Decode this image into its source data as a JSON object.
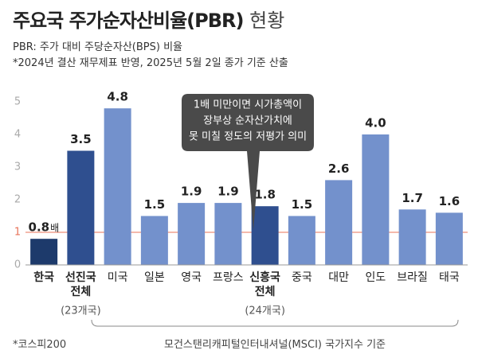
{
  "chart_data": {
    "type": "bar",
    "title": "주요국 주가순자산비율(PBR)",
    "title_suffix": "현황",
    "subtitle": [
      "PBR: 주가 대비 주당순자산(BPS) 비율",
      "*2024년 결산 재무제표 반영, 2025년 5월 2일 종가 기준 산출"
    ],
    "categories": [
      "한국",
      "선진국 전체",
      "미국",
      "일본",
      "영국",
      "프랑스",
      "신흥국 전체",
      "중국",
      "대만",
      "인도",
      "브라질",
      "태국"
    ],
    "values": [
      0.8,
      3.5,
      4.8,
      1.5,
      1.9,
      1.9,
      1.8,
      1.5,
      2.6,
      4.0,
      1.7,
      1.6
    ],
    "value_labels": [
      "0.8",
      "3.5",
      "4.8",
      "1.5",
      "1.9",
      "1.9",
      "1.8",
      "1.5",
      "2.6",
      "4.0",
      "1.7",
      "1.6"
    ],
    "value_unit": "배",
    "colors": [
      "#1d3a6b",
      "#2f4f8f",
      "#7391cc",
      "#7391cc",
      "#7391cc",
      "#7391cc",
      "#2f4f8f",
      "#7391cc",
      "#7391cc",
      "#7391cc",
      "#7391cc",
      "#7391cc"
    ],
    "bold_categories": [
      0,
      1,
      6
    ],
    "group_notes": [
      {
        "category": 1,
        "text": "(23개국)"
      },
      {
        "category": 6,
        "text": "(24개국)"
      }
    ],
    "ylim": [
      0,
      5
    ],
    "yticks": [
      0,
      1,
      2,
      3,
      4,
      5
    ],
    "reference_line": 1,
    "reference_color": "#e8735a",
    "annotation": [
      "1배 미만이면 시가총액이",
      "장부상 순자산가치에",
      "못 미칠 정도의 저평가 의미"
    ],
    "bracket_label": "모건스탠리캐피털인터내셔널(MSCI) 국가지수 기준",
    "footnote": "*코스피200"
  }
}
